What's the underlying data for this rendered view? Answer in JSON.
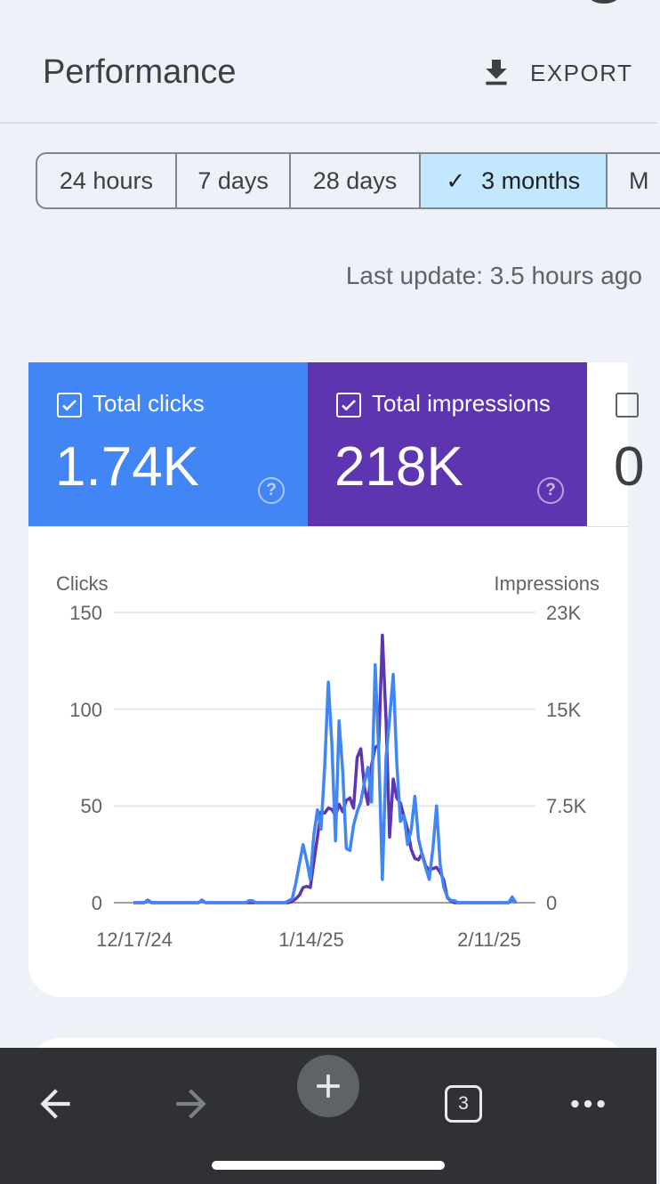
{
  "header": {
    "title": "Performance",
    "export_label": "EXPORT"
  },
  "date_range": {
    "options": [
      {
        "label": "24 hours",
        "selected": false
      },
      {
        "label": "7 days",
        "selected": false
      },
      {
        "label": "28 days",
        "selected": false
      },
      {
        "label": "3 months",
        "selected": true
      },
      {
        "label": "M",
        "selected": false
      }
    ]
  },
  "last_update": "Last update: 3.5 hours ago",
  "metrics": [
    {
      "label": "Total clicks",
      "value": "1.74K",
      "checked": true,
      "color": "#4285f4"
    },
    {
      "label": "Total impressions",
      "value": "218K",
      "checked": true,
      "color": "#5e35b1"
    },
    {
      "label": "",
      "value": "0",
      "checked": false
    }
  ],
  "chart_data": {
    "type": "line",
    "left_axis_label": "Clicks",
    "right_axis_label": "Impressions",
    "left_ticks": [
      "150",
      "100",
      "50",
      "0"
    ],
    "right_ticks": [
      "23K",
      "15K",
      "7.5K",
      "0"
    ],
    "left_ylim": [
      0,
      150
    ],
    "right_ylim": [
      0,
      23000
    ],
    "x_ticks": [
      "12/17/24",
      "1/14/25",
      "2/11/25"
    ],
    "grid": true,
    "series": [
      {
        "name": "Clicks",
        "axis": "left",
        "color": "#4285f4",
        "values": [
          0,
          0,
          0,
          0,
          1,
          0,
          0,
          0,
          0,
          0,
          0,
          0,
          0,
          0,
          0,
          0,
          0,
          0,
          0,
          1,
          0,
          0,
          0,
          0,
          0,
          0,
          0,
          0,
          0,
          0,
          0,
          0,
          1,
          1,
          0,
          0,
          0,
          0,
          0,
          0,
          0,
          0,
          0,
          1,
          2,
          10,
          20,
          30,
          22,
          12,
          35,
          48,
          38,
          70,
          114,
          82,
          32,
          94,
          68,
          28,
          27,
          40,
          47,
          52,
          62,
          70,
          52,
          123,
          78,
          12,
          75,
          95,
          118,
          72,
          42,
          45,
          30,
          38,
          55,
          33,
          25,
          18,
          12,
          28,
          50,
          20,
          8,
          3,
          1,
          1,
          0,
          0,
          0,
          0,
          0,
          0,
          0,
          0,
          0,
          0,
          0,
          0,
          0,
          0,
          0,
          3,
          0
        ]
      },
      {
        "name": "Impressions",
        "axis": "right",
        "color": "#5e35b1",
        "values": [
          0,
          0,
          0,
          0,
          200,
          0,
          0,
          0,
          0,
          0,
          0,
          0,
          0,
          0,
          0,
          0,
          0,
          0,
          0,
          200,
          0,
          0,
          0,
          0,
          0,
          0,
          0,
          0,
          0,
          0,
          0,
          0,
          0,
          0,
          0,
          0,
          0,
          0,
          0,
          0,
          0,
          0,
          0,
          0,
          100,
          300,
          600,
          1200,
          1300,
          1200,
          3200,
          5200,
          7200,
          7100,
          7500,
          7400,
          6900,
          7800,
          7200,
          8100,
          8300,
          7500,
          11500,
          12200,
          9200,
          7800,
          10900,
          12300,
          12500,
          21200,
          14500,
          5200,
          9800,
          8300,
          7900,
          6800,
          5800,
          4200,
          3500,
          3400,
          3900,
          2900,
          2600,
          2700,
          2800,
          2400,
          1800,
          400,
          100,
          0,
          0,
          0,
          0,
          0,
          0,
          0,
          0,
          0,
          0,
          0,
          0,
          0,
          0,
          0,
          0,
          300,
          0
        ]
      }
    ]
  },
  "nav": {
    "tab_count": "3"
  }
}
